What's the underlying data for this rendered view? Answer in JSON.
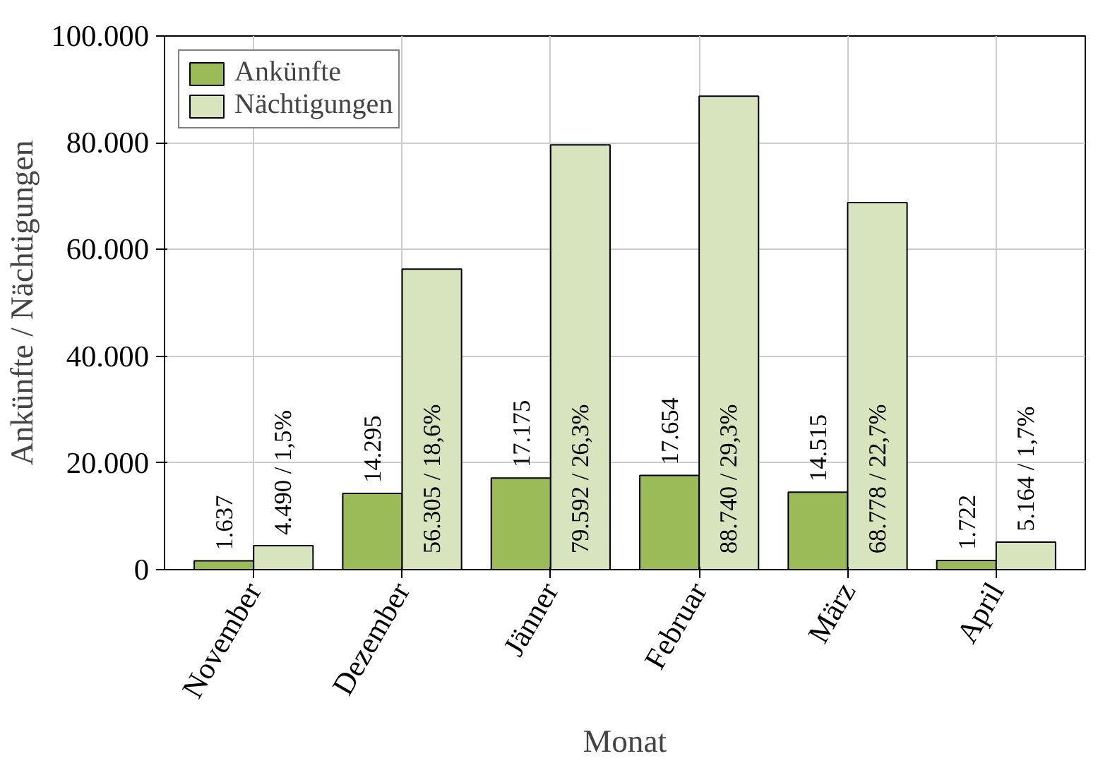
{
  "chart_data": {
    "type": "bar",
    "xlabel": "Monat",
    "ylabel": "Ankünfte / Nächtigungen",
    "categories": [
      "November",
      "Dezember",
      "Jänner",
      "Februar",
      "März",
      "April"
    ],
    "series": [
      {
        "name": "Ankünfte",
        "color": "#9bbb59",
        "values": [
          1637,
          14295,
          17175,
          17654,
          14515,
          1722
        ],
        "value_labels": [
          "1.637",
          "14.295",
          "17.175",
          "17.654",
          "14.515",
          "1.722"
        ]
      },
      {
        "name": "Nächtigungen",
        "color": "#d7e4bd",
        "values": [
          4490,
          56305,
          79592,
          88740,
          68778,
          5164
        ],
        "value_labels": [
          "4.490 / 1,5%",
          "56.305 / 18,6%",
          "79.592 / 26,3%",
          "88.740 / 29,3%",
          "68.778 / 22,7%",
          "5.164 / 1,7%"
        ]
      }
    ],
    "ylim": [
      0,
      100000
    ],
    "yticks": [
      {
        "value": 0,
        "label": "0"
      },
      {
        "value": 20000,
        "label": "20.000"
      },
      {
        "value": 40000,
        "label": "40.000"
      },
      {
        "value": 60000,
        "label": "60.000"
      },
      {
        "value": 80000,
        "label": "80.000"
      },
      {
        "value": 100000,
        "label": "100.000"
      }
    ],
    "grid": true,
    "legend": "top left"
  }
}
